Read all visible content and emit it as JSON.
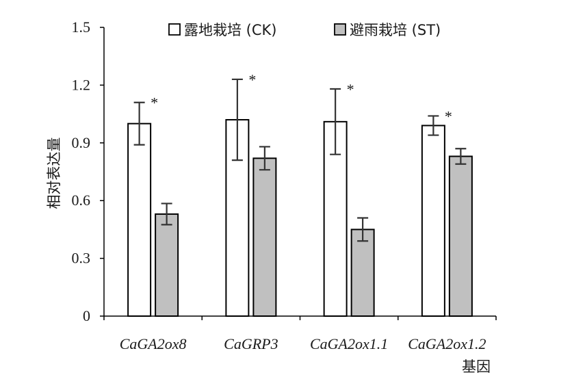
{
  "chart_data": {
    "type": "bar",
    "title": "",
    "xlabel": "基因",
    "ylabel": "相对表达量",
    "ylim": [
      0,
      1.5
    ],
    "yticks": [
      "0",
      "0.3",
      "0.6",
      "0.9",
      "1.2",
      "1.5"
    ],
    "categories": [
      "CaGA2ox8",
      "CaGRP3",
      "CaGA2ox1.1",
      "CaGA2ox1.2"
    ],
    "series": [
      {
        "name": "露地栽培 (CK)",
        "color": "#ffffff",
        "values": [
          1.0,
          1.02,
          1.01,
          0.99
        ],
        "errors": [
          0.11,
          0.21,
          0.17,
          0.05
        ]
      },
      {
        "name": "避雨栽培 (ST)",
        "color": "#c0c0c0",
        "values": [
          0.53,
          0.82,
          0.45,
          0.83
        ],
        "errors": [
          0.055,
          0.06,
          0.06,
          0.04
        ]
      }
    ],
    "significance": [
      "*",
      "*",
      "*",
      "*"
    ],
    "legend_position": "top",
    "grid": false
  }
}
